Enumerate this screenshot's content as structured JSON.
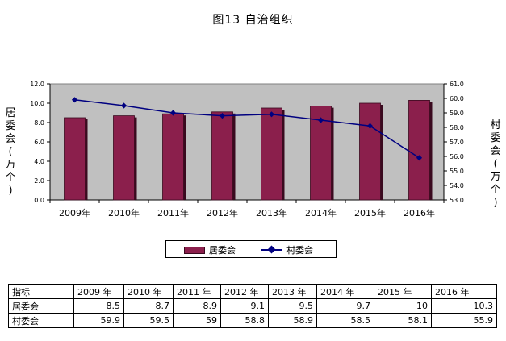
{
  "title": "图13   自治组织",
  "chart_data": {
    "type": "bar+line",
    "categories": [
      "2009年",
      "2010年",
      "2011年",
      "2012年",
      "2013年",
      "2014年",
      "2015年",
      "2016年"
    ],
    "left_axis": {
      "label_chars": [
        "居",
        "委",
        "会",
        "(",
        "万",
        "个",
        ")"
      ],
      "ylim": [
        0,
        12
      ],
      "ticks": [
        "0.0",
        "2.0",
        "4.0",
        "6.0",
        "8.0",
        "10.0",
        "12.0"
      ]
    },
    "right_axis": {
      "label_chars": [
        "村",
        "委",
        "会",
        "(",
        "万",
        "个",
        ")"
      ],
      "ylim": [
        53,
        61
      ],
      "ticks": [
        "53.0",
        "54.0",
        "55.0",
        "56.0",
        "57.0",
        "58.0",
        "59.0",
        "60.0",
        "61.0"
      ]
    },
    "series": [
      {
        "name": "居委会",
        "type": "bar",
        "axis": "left",
        "values": [
          8.5,
          8.7,
          8.9,
          9.1,
          9.5,
          9.7,
          10,
          10.3
        ],
        "color": "#8b1f4c"
      },
      {
        "name": "村委会",
        "type": "line",
        "axis": "right",
        "values": [
          59.9,
          59.5,
          59,
          58.8,
          58.9,
          58.5,
          58.1,
          55.9
        ],
        "color": "#000080"
      }
    ],
    "plot_background": "#c0c0c0",
    "legend_position": "bottom"
  },
  "table": {
    "header": [
      "指标",
      "2009 年",
      "2010 年",
      "2011 年",
      "2012 年",
      "2013 年",
      "2014 年",
      "2015 年",
      "2016 年"
    ],
    "rows": [
      {
        "label": "居委会",
        "values": [
          "8.5",
          "8.7",
          "8.9",
          "9.1",
          "9.5",
          "9.7",
          "10",
          "10.3"
        ]
      },
      {
        "label": "村委会",
        "values": [
          "59.9",
          "59.5",
          "59",
          "58.8",
          "58.9",
          "58.5",
          "58.1",
          "55.9"
        ]
      }
    ]
  }
}
